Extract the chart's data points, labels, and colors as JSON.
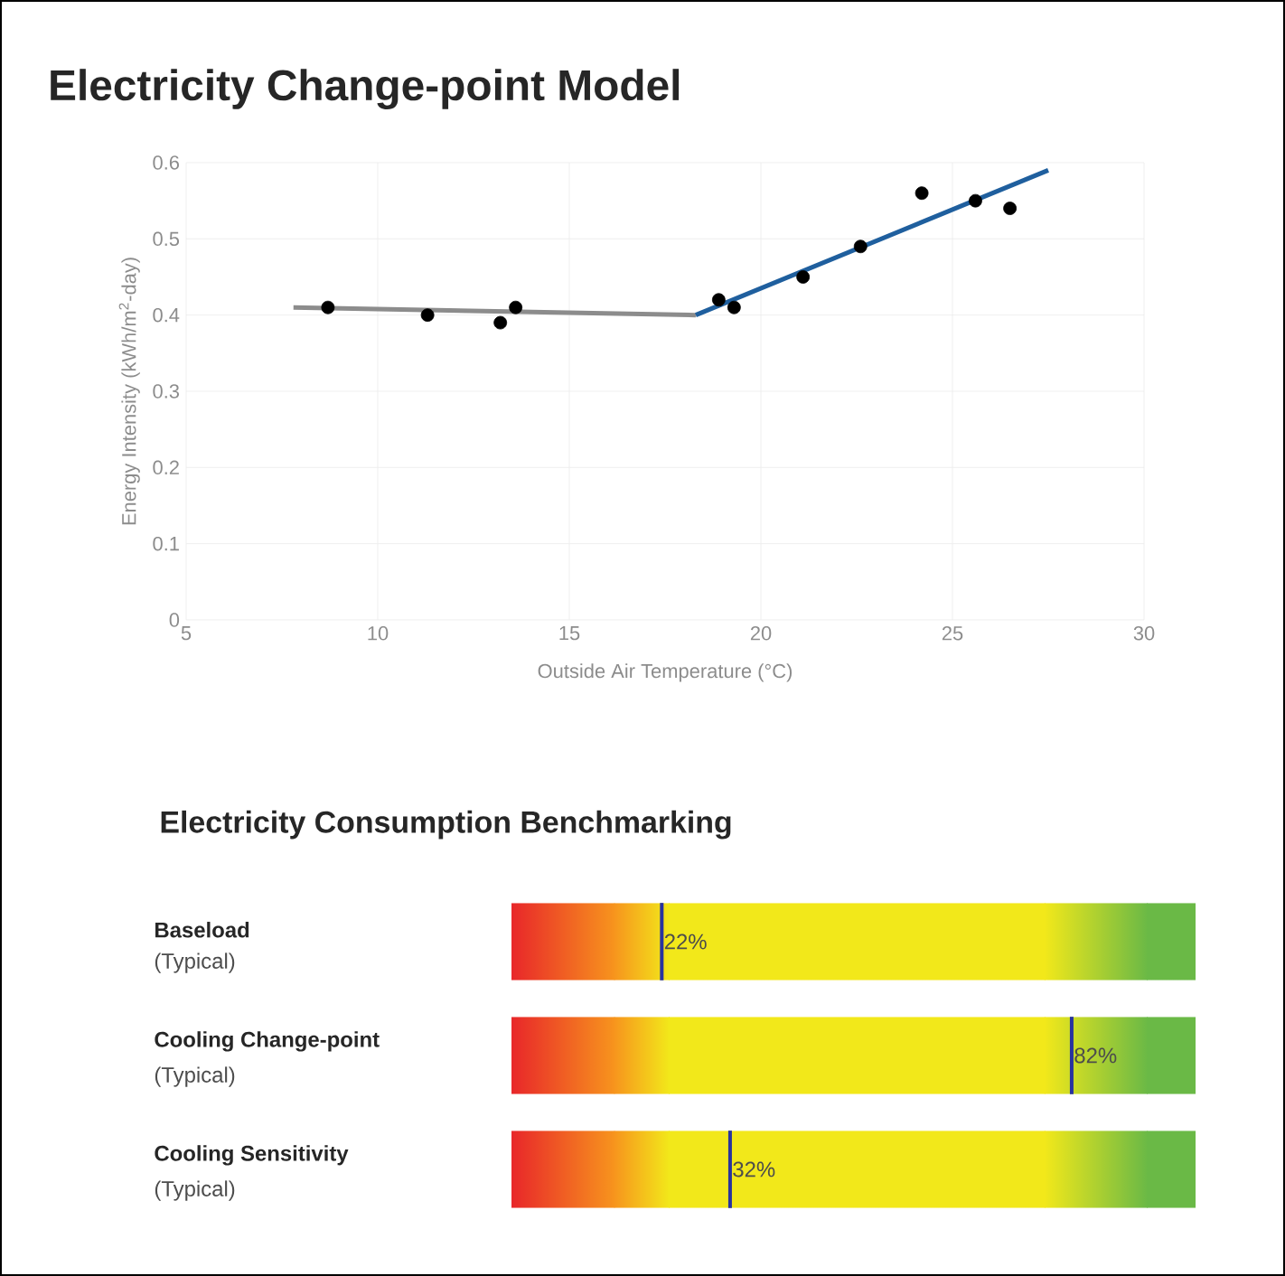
{
  "chart_data": [
    {
      "type": "scatter",
      "title": "Electricity Change-point Model",
      "xlabel": "Outside Air Temperature (°C)",
      "ylabel": "Energy Intensity (kWh/m$^{2}$-day)",
      "xlim": [
        5,
        30
      ],
      "ylim": [
        0,
        0.6
      ],
      "xticks": [
        5,
        10,
        15,
        20,
        25,
        30
      ],
      "yticks": [
        0,
        0.1,
        0.2,
        0.3,
        0.4,
        0.5,
        0.6
      ],
      "grid": true,
      "series": [
        {
          "type": "scatter",
          "marker": "circle",
          "color": "#000000",
          "x": [
            8.7,
            11.3,
            13.2,
            13.6,
            18.9,
            19.3,
            21.1,
            22.6,
            24.2,
            25.6,
            26.5
          ],
          "values": [
            0.41,
            0.4,
            0.39,
            0.41,
            0.42,
            0.41,
            0.45,
            0.49,
            0.56,
            0.55,
            0.54
          ]
        },
        {
          "type": "line",
          "marker": "none",
          "color": "#8c8c8c",
          "x": [
            7.8,
            18.3
          ],
          "values": [
            0.41,
            0.4
          ]
        },
        {
          "type": "line",
          "marker": "none",
          "color": "#1f5f9e",
          "x": [
            18.3,
            27.5
          ],
          "values": [
            0.4,
            0.59
          ]
        }
      ]
    },
    {
      "type": "other",
      "title": "Electricity Consumption Benchmarking",
      "categories": [
        "Baseload",
        "Cooling Change-point",
        "Cooling Sensitivity"
      ],
      "values": [
        22,
        82,
        32
      ],
      "value_labels": [
        "22%",
        "82%",
        "32%"
      ],
      "annotations": [
        "(Typical)",
        "(Typical)",
        "(Typical)"
      ]
    }
  ]
}
